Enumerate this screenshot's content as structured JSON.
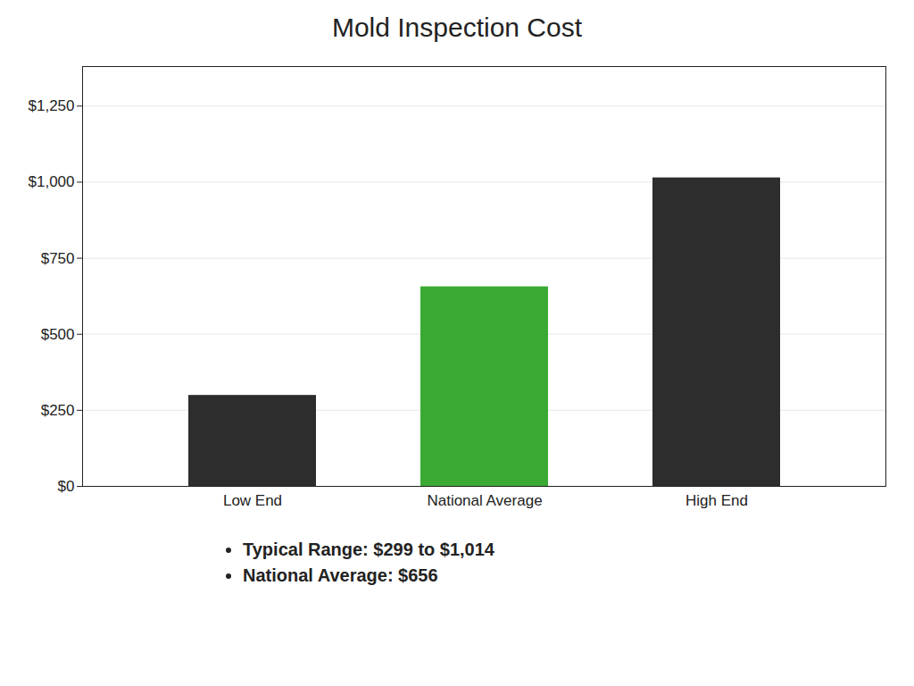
{
  "chart_data": {
    "type": "bar",
    "title": "Mold Inspection Cost",
    "categories": [
      "Low End",
      "National Average",
      "High End"
    ],
    "values": [
      299,
      656,
      1014
    ],
    "colors": [
      "#2d2d2d",
      "#3aaa35",
      "#2d2d2d"
    ],
    "ylim": [
      0,
      1380
    ],
    "yticks": [
      {
        "value": 0,
        "label": "$0"
      },
      {
        "value": 250,
        "label": "$250"
      },
      {
        "value": 500,
        "label": "$500"
      },
      {
        "value": 750,
        "label": "$750"
      },
      {
        "value": 1000,
        "label": "$1,000"
      },
      {
        "value": 1250,
        "label": "$1,250"
      }
    ],
    "grid": true,
    "annotations": [
      "Typical Range: $299 to $1,014",
      "National Average: $656"
    ]
  }
}
